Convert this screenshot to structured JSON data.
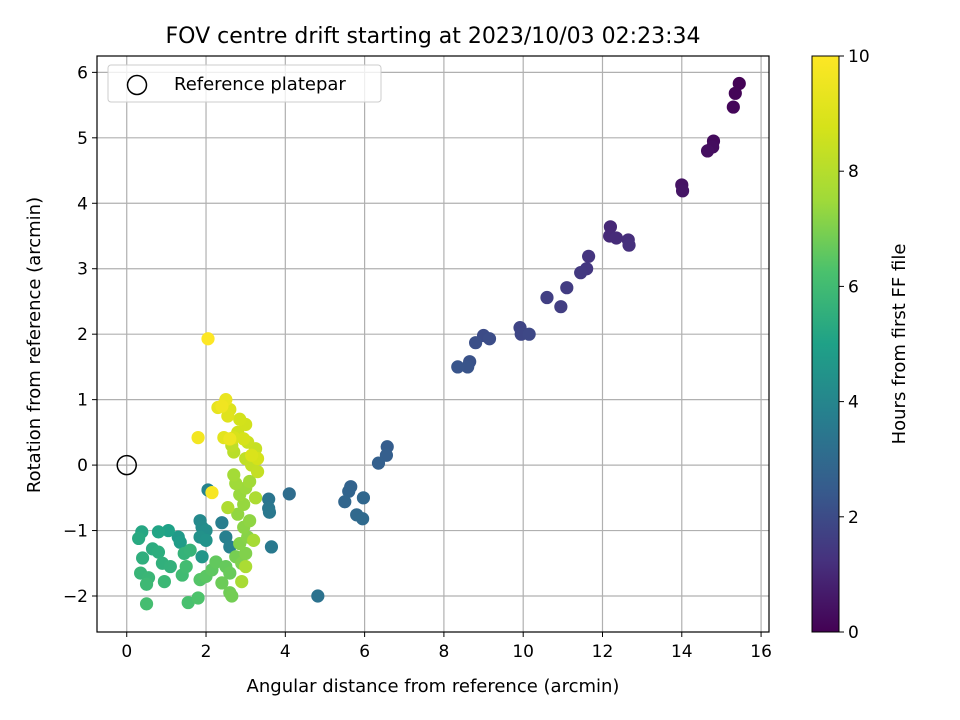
{
  "chart_data": {
    "type": "scatter",
    "title": "FOV centre drift starting at 2023/10/03 02:23:34",
    "xlabel": "Angular distance from reference (arcmin)",
    "ylabel": "Rotation from reference (arcmin)",
    "xlim": [
      -0.75,
      16.2
    ],
    "ylim": [
      -2.55,
      6.25
    ],
    "xticks": [
      0,
      2,
      4,
      6,
      8,
      10,
      12,
      14,
      16
    ],
    "yticks": [
      -2,
      -1,
      0,
      1,
      2,
      3,
      4,
      5,
      6
    ],
    "grid": true,
    "legend": {
      "position": "top-left",
      "entries": [
        "Reference platepar"
      ]
    },
    "reference_point": {
      "x": 0,
      "y": 0,
      "label": "Reference platepar"
    },
    "colorbar": {
      "label": "Hours from first FF file",
      "range": [
        0,
        10
      ],
      "ticks": [
        0,
        2,
        4,
        6,
        8,
        10
      ],
      "colormap": "viridis"
    },
    "points": [
      {
        "x": 15.45,
        "y": 5.83,
        "h": 0.05
      },
      {
        "x": 15.35,
        "y": 5.68,
        "h": 0.1
      },
      {
        "x": 15.3,
        "y": 5.47,
        "h": 0.15
      },
      {
        "x": 14.8,
        "y": 4.95,
        "h": 0.25
      },
      {
        "x": 14.78,
        "y": 4.86,
        "h": 0.3
      },
      {
        "x": 14.65,
        "y": 4.8,
        "h": 0.35
      },
      {
        "x": 14.0,
        "y": 4.28,
        "h": 0.45
      },
      {
        "x": 14.02,
        "y": 4.19,
        "h": 0.5
      },
      {
        "x": 12.2,
        "y": 3.64,
        "h": 1.0
      },
      {
        "x": 12.18,
        "y": 3.5,
        "h": 1.05
      },
      {
        "x": 12.35,
        "y": 3.47,
        "h": 1.1
      },
      {
        "x": 12.65,
        "y": 3.44,
        "h": 1.15
      },
      {
        "x": 12.67,
        "y": 3.36,
        "h": 1.2
      },
      {
        "x": 11.65,
        "y": 3.19,
        "h": 1.35
      },
      {
        "x": 11.6,
        "y": 3.0,
        "h": 1.4
      },
      {
        "x": 11.45,
        "y": 2.94,
        "h": 1.45
      },
      {
        "x": 11.1,
        "y": 2.71,
        "h": 1.55
      },
      {
        "x": 10.95,
        "y": 2.42,
        "h": 1.6
      },
      {
        "x": 10.6,
        "y": 2.56,
        "h": 1.65
      },
      {
        "x": 9.92,
        "y": 2.1,
        "h": 1.8
      },
      {
        "x": 9.95,
        "y": 2.0,
        "h": 1.85
      },
      {
        "x": 10.15,
        "y": 2.0,
        "h": 1.9
      },
      {
        "x": 9.0,
        "y": 1.98,
        "h": 2.0
      },
      {
        "x": 9.15,
        "y": 1.93,
        "h": 2.05
      },
      {
        "x": 8.8,
        "y": 1.87,
        "h": 2.1
      },
      {
        "x": 8.65,
        "y": 1.58,
        "h": 2.2
      },
      {
        "x": 8.6,
        "y": 1.5,
        "h": 2.25
      },
      {
        "x": 8.35,
        "y": 1.5,
        "h": 2.3
      },
      {
        "x": 6.57,
        "y": 0.28,
        "h": 2.55
      },
      {
        "x": 6.55,
        "y": 0.15,
        "h": 2.6
      },
      {
        "x": 6.35,
        "y": 0.03,
        "h": 2.65
      },
      {
        "x": 5.65,
        "y": -0.33,
        "h": 2.75
      },
      {
        "x": 5.6,
        "y": -0.4,
        "h": 2.8
      },
      {
        "x": 5.5,
        "y": -0.56,
        "h": 2.85
      },
      {
        "x": 5.97,
        "y": -0.5,
        "h": 2.9
      },
      {
        "x": 5.8,
        "y": -0.76,
        "h": 2.95
      },
      {
        "x": 5.95,
        "y": -0.82,
        "h": 3.0
      },
      {
        "x": 4.1,
        "y": -0.44,
        "h": 3.1
      },
      {
        "x": 4.82,
        "y": -2.0,
        "h": 3.3
      },
      {
        "x": 3.58,
        "y": -0.52,
        "h": 3.4
      },
      {
        "x": 3.58,
        "y": -0.66,
        "h": 3.45
      },
      {
        "x": 3.6,
        "y": -0.72,
        "h": 3.5
      },
      {
        "x": 3.65,
        "y": -1.25,
        "h": 3.55
      },
      {
        "x": 2.4,
        "y": -0.88,
        "h": 3.7
      },
      {
        "x": 2.5,
        "y": -1.1,
        "h": 3.75
      },
      {
        "x": 2.6,
        "y": -1.25,
        "h": 3.8
      },
      {
        "x": 2.05,
        "y": -0.38,
        "h": 3.9
      },
      {
        "x": 1.85,
        "y": -0.85,
        "h": 4.1
      },
      {
        "x": 1.9,
        "y": -0.95,
        "h": 4.2
      },
      {
        "x": 2.0,
        "y": -1.0,
        "h": 4.3
      },
      {
        "x": 1.85,
        "y": -1.1,
        "h": 4.4
      },
      {
        "x": 2.0,
        "y": -1.15,
        "h": 4.5
      },
      {
        "x": 1.9,
        "y": -1.4,
        "h": 4.6
      },
      {
        "x": 1.3,
        "y": -1.1,
        "h": 4.7
      },
      {
        "x": 1.35,
        "y": -1.18,
        "h": 4.8
      },
      {
        "x": 1.05,
        "y": -1.0,
        "h": 5.0
      },
      {
        "x": 0.8,
        "y": -1.02,
        "h": 5.1
      },
      {
        "x": 0.38,
        "y": -1.02,
        "h": 5.2
      },
      {
        "x": 0.3,
        "y": -1.12,
        "h": 5.3
      },
      {
        "x": 0.65,
        "y": -1.28,
        "h": 5.4
      },
      {
        "x": 0.8,
        "y": -1.33,
        "h": 5.45
      },
      {
        "x": 0.4,
        "y": -1.42,
        "h": 5.5
      },
      {
        "x": 0.9,
        "y": -1.5,
        "h": 5.55
      },
      {
        "x": 1.1,
        "y": -1.55,
        "h": 5.6
      },
      {
        "x": 1.45,
        "y": -1.35,
        "h": 5.65
      },
      {
        "x": 1.6,
        "y": -1.3,
        "h": 5.7
      },
      {
        "x": 0.35,
        "y": -1.65,
        "h": 5.75
      },
      {
        "x": 0.55,
        "y": -1.72,
        "h": 5.8
      },
      {
        "x": 0.95,
        "y": -1.78,
        "h": 5.85
      },
      {
        "x": 0.5,
        "y": -1.82,
        "h": 5.9
      },
      {
        "x": 1.4,
        "y": -1.68,
        "h": 6.0
      },
      {
        "x": 1.5,
        "y": -1.55,
        "h": 6.05
      },
      {
        "x": 0.5,
        "y": -2.12,
        "h": 6.1
      },
      {
        "x": 1.55,
        "y": -2.1,
        "h": 6.2
      },
      {
        "x": 1.8,
        "y": -2.03,
        "h": 6.3
      },
      {
        "x": 1.85,
        "y": -1.75,
        "h": 6.4
      },
      {
        "x": 2.0,
        "y": -1.7,
        "h": 6.5
      },
      {
        "x": 2.15,
        "y": -1.6,
        "h": 6.55
      },
      {
        "x": 2.25,
        "y": -1.48,
        "h": 6.6
      },
      {
        "x": 2.5,
        "y": -1.55,
        "h": 6.65
      },
      {
        "x": 2.6,
        "y": -1.65,
        "h": 6.7
      },
      {
        "x": 2.4,
        "y": -1.8,
        "h": 6.75
      },
      {
        "x": 2.6,
        "y": -1.95,
        "h": 6.8
      },
      {
        "x": 2.65,
        "y": -2.0,
        "h": 6.85
      },
      {
        "x": 2.75,
        "y": -1.4,
        "h": 6.9
      },
      {
        "x": 2.9,
        "y": -1.5,
        "h": 7.0
      },
      {
        "x": 3.0,
        "y": -1.35,
        "h": 7.05
      },
      {
        "x": 2.85,
        "y": -1.2,
        "h": 7.1
      },
      {
        "x": 3.05,
        "y": -1.1,
        "h": 7.15
      },
      {
        "x": 2.95,
        "y": -0.95,
        "h": 7.2
      },
      {
        "x": 3.1,
        "y": -0.85,
        "h": 7.25
      },
      {
        "x": 2.8,
        "y": -0.75,
        "h": 7.3
      },
      {
        "x": 2.95,
        "y": -0.6,
        "h": 7.35
      },
      {
        "x": 2.85,
        "y": -0.45,
        "h": 7.4
      },
      {
        "x": 3.0,
        "y": -0.35,
        "h": 7.45
      },
      {
        "x": 2.75,
        "y": -0.28,
        "h": 7.5
      },
      {
        "x": 3.1,
        "y": -0.25,
        "h": 7.55
      },
      {
        "x": 2.7,
        "y": -0.15,
        "h": 7.6
      },
      {
        "x": 3.2,
        "y": -1.15,
        "h": 7.65
      },
      {
        "x": 2.9,
        "y": -1.78,
        "h": 7.7
      },
      {
        "x": 3.0,
        "y": -1.55,
        "h": 7.75
      },
      {
        "x": 3.25,
        "y": -0.5,
        "h": 7.8
      },
      {
        "x": 2.55,
        "y": -0.65,
        "h": 7.85
      },
      {
        "x": 2.7,
        "y": 0.2,
        "h": 8.1
      },
      {
        "x": 2.65,
        "y": 0.3,
        "h": 8.2
      },
      {
        "x": 3.0,
        "y": 0.1,
        "h": 8.25
      },
      {
        "x": 3.15,
        "y": 0.0,
        "h": 8.3
      },
      {
        "x": 3.3,
        "y": -0.1,
        "h": 8.35
      },
      {
        "x": 3.25,
        "y": 0.25,
        "h": 8.4
      },
      {
        "x": 3.05,
        "y": 0.35,
        "h": 8.5
      },
      {
        "x": 2.8,
        "y": 0.5,
        "h": 8.6
      },
      {
        "x": 3.0,
        "y": 0.62,
        "h": 8.65
      },
      {
        "x": 2.85,
        "y": 0.7,
        "h": 8.7
      },
      {
        "x": 3.3,
        "y": 0.1,
        "h": 8.75
      },
      {
        "x": 2.95,
        "y": 0.4,
        "h": 8.8
      },
      {
        "x": 2.7,
        "y": 0.42,
        "h": 8.85
      },
      {
        "x": 3.15,
        "y": 0.15,
        "h": 8.9
      },
      {
        "x": 2.6,
        "y": 0.85,
        "h": 9.0
      },
      {
        "x": 2.55,
        "y": 0.75,
        "h": 9.1
      },
      {
        "x": 2.45,
        "y": 0.42,
        "h": 9.2
      },
      {
        "x": 2.3,
        "y": 0.88,
        "h": 9.3
      },
      {
        "x": 2.5,
        "y": 1.0,
        "h": 9.4
      },
      {
        "x": 2.6,
        "y": 0.4,
        "h": 9.5
      },
      {
        "x": 2.4,
        "y": 0.9,
        "h": 9.6
      },
      {
        "x": 1.8,
        "y": 0.42,
        "h": 9.7
      },
      {
        "x": 2.15,
        "y": -0.42,
        "h": 9.8
      },
      {
        "x": 2.05,
        "y": 1.93,
        "h": 10.0
      }
    ]
  }
}
